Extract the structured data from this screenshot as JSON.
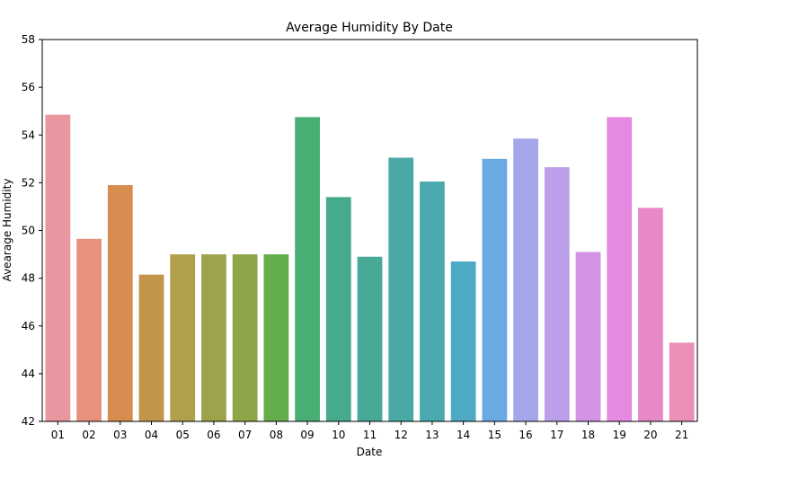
{
  "chart_data": {
    "type": "bar",
    "title": "Average Humidity By Date",
    "xlabel": "Date",
    "ylabel": "Avearage Humidity",
    "ylim": [
      42,
      58
    ],
    "yticks": [
      "42",
      "44",
      "46",
      "48",
      "50",
      "52",
      "54",
      "56",
      "58"
    ],
    "categories": [
      "01",
      "02",
      "03",
      "04",
      "05",
      "06",
      "07",
      "08",
      "09",
      "10",
      "11",
      "12",
      "13",
      "14",
      "15",
      "16",
      "17",
      "18",
      "19",
      "20",
      "21"
    ],
    "values": [
      54.85,
      49.65,
      51.9,
      48.15,
      49.0,
      49.0,
      49.0,
      49.0,
      54.75,
      51.4,
      48.9,
      53.05,
      52.05,
      48.7,
      53.0,
      53.85,
      52.65,
      49.1,
      54.75,
      50.95,
      45.3
    ],
    "colors": [
      "#e8969f",
      "#e6927d",
      "#d78c50",
      "#c1954b",
      "#b0a04c",
      "#9ea24b",
      "#8da748",
      "#64ad4c",
      "#48ae74",
      "#47aa8c",
      "#49a999",
      "#4aa9a4",
      "#4baaaf",
      "#4da9c4",
      "#68aae1",
      "#a4a8ea",
      "#bb9fe8",
      "#d393e4",
      "#e58ae0",
      "#e889c7",
      "#e98fb8"
    ],
    "grid": false,
    "legend": "none"
  }
}
